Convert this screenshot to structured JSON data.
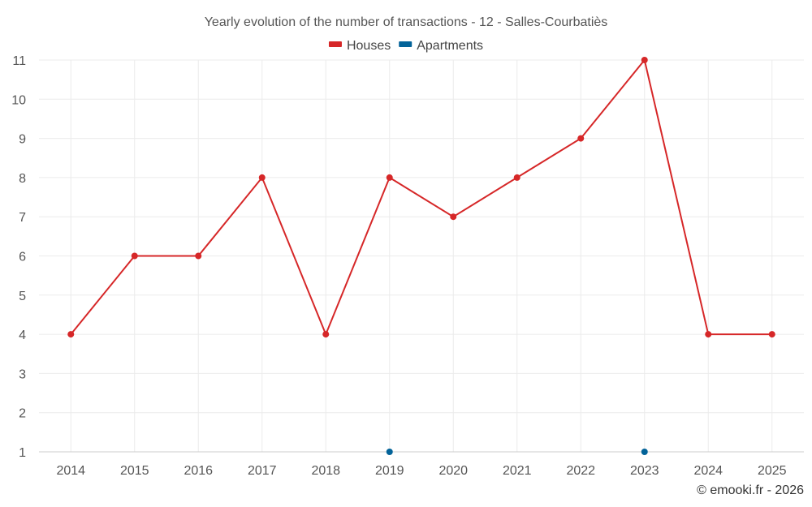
{
  "chart_data": {
    "type": "line",
    "title": "Yearly evolution of the number of transactions - 12 - Salles-Courbatiès",
    "xlabel": "",
    "ylabel": "",
    "ylim": [
      1,
      11
    ],
    "yticks": [
      "1",
      "2",
      "3",
      "4",
      "5",
      "6",
      "7",
      "8",
      "9",
      "10",
      "11"
    ],
    "categories": [
      "2014",
      "2015",
      "2016",
      "2017",
      "2018",
      "2019",
      "2020",
      "2021",
      "2022",
      "2023",
      "2024",
      "2025"
    ],
    "series": [
      {
        "name": "Houses",
        "color": "#d62728",
        "values": [
          4,
          6,
          6,
          8,
          4,
          8,
          7,
          8,
          9,
          11,
          4,
          4
        ]
      },
      {
        "name": "Apartments",
        "color": "#036399",
        "values": [
          null,
          null,
          null,
          null,
          null,
          1,
          null,
          null,
          null,
          1,
          null,
          null
        ]
      }
    ],
    "legend_position": "top-center",
    "grid": true
  },
  "credit": "© emooki.fr - 2026"
}
